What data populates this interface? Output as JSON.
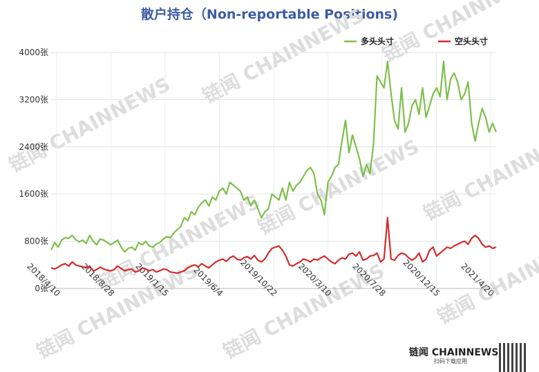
{
  "title": "散户持仓（Non-reportable Positions)",
  "brand": {
    "name": "链闻 CHAINNEWS",
    "tagline": "扫码下载应用"
  },
  "watermark_text": "链闻 CHAINNEWS",
  "chart_data": {
    "type": "line",
    "title": "散户持仓（Non-reportable Positions)",
    "xlabel": "",
    "ylabel": "",
    "ylim": [
      0,
      4000
    ],
    "yticks": [
      "0张",
      "800张",
      "1600张",
      "2400张",
      "3200张",
      "4000张"
    ],
    "ytick_values": [
      0,
      800,
      1600,
      2400,
      3200,
      4000
    ],
    "xticks": [
      "2018/4/10",
      "2018/8/28",
      "2019/1/15",
      "2019/6/4",
      "2019/10/22",
      "2020/3/10",
      "2020/7/28",
      "2020/12/15",
      "2021/4/20"
    ],
    "grid": true,
    "legend": "top-right",
    "series": [
      {
        "name": "多头头寸",
        "color": "#7dbf4a",
        "values": [
          650,
          780,
          700,
          820,
          860,
          850,
          900,
          830,
          790,
          820,
          760,
          900,
          800,
          740,
          840,
          820,
          780,
          740,
          780,
          820,
          700,
          620,
          680,
          700,
          650,
          780,
          740,
          800,
          720,
          700,
          750,
          780,
          840,
          880,
          860,
          940,
          1000,
          1050,
          1200,
          1150,
          1300,
          1250,
          1380,
          1450,
          1500,
          1400,
          1550,
          1500,
          1650,
          1700,
          1600,
          1800,
          1750,
          1700,
          1650,
          1500,
          1550,
          1400,
          1500,
          1350,
          1200,
          1300,
          1350,
          1600,
          1550,
          1500,
          1700,
          1500,
          1800,
          1650,
          1750,
          1800,
          1900,
          2000,
          2050,
          1950,
          1600,
          1500,
          1250,
          1800,
          1900,
          2050,
          2100,
          2500,
          2850,
          2300,
          2600,
          2400,
          2200,
          1900,
          2100,
          1950,
          2450,
          3600,
          3500,
          3400,
          3850,
          3300,
          2850,
          2700,
          3400,
          2650,
          2800,
          3100,
          3200,
          2950,
          3400,
          2900,
          3100,
          3300,
          3400,
          3250,
          3850,
          3200,
          3550,
          3650,
          3500,
          3200,
          3300,
          3500,
          2800,
          2500,
          2800,
          3050,
          2900,
          2650,
          2800,
          2650
        ]
      },
      {
        "name": "空头头寸",
        "color": "#d42a2a",
        "values": [
          350,
          330,
          360,
          400,
          420,
          380,
          450,
          400,
          380,
          370,
          350,
          380,
          300,
          320,
          360,
          330,
          310,
          300,
          320,
          380,
          340,
          300,
          320,
          330,
          280,
          300,
          350,
          330,
          300,
          320,
          280,
          300,
          330,
          320,
          280,
          270,
          260,
          280,
          300,
          350,
          380,
          400,
          370,
          420,
          380,
          350,
          400,
          450,
          480,
          500,
          460,
          520,
          550,
          500,
          480,
          520,
          540,
          500,
          560,
          480,
          450,
          500,
          600,
          680,
          700,
          720,
          650,
          550,
          400,
          380,
          420,
          450,
          500,
          480,
          450,
          500,
          480,
          520,
          550,
          500,
          450,
          420,
          480,
          520,
          500,
          580,
          600,
          550,
          620,
          480,
          500,
          550,
          560,
          600,
          450,
          500,
          1200,
          500,
          480,
          560,
          600,
          580,
          520,
          480,
          520,
          600,
          450,
          500,
          650,
          700,
          550,
          600,
          650,
          700,
          680,
          720,
          750,
          780,
          800,
          750,
          850,
          900,
          850,
          750,
          700,
          720,
          680,
          700
        ]
      }
    ]
  }
}
